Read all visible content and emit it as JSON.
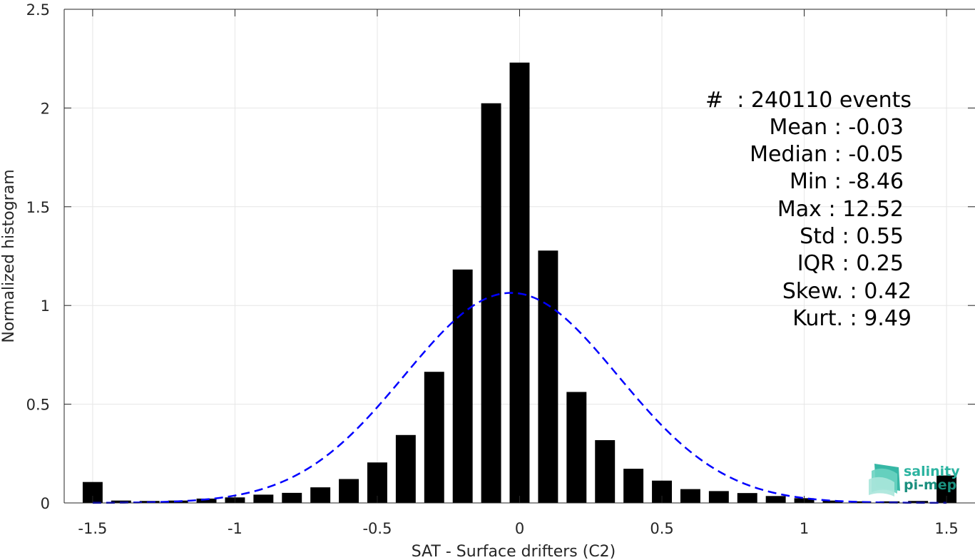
{
  "chart_data": {
    "type": "bar",
    "xlabel": "SAT - Surface drifters (C2)",
    "ylabel": "Normalized histogram",
    "xlim": [
      -1.6,
      1.6
    ],
    "ylim": [
      0,
      2.5
    ],
    "xticks": [
      "-1.5",
      "-1",
      "-0.5",
      "0",
      "0.5",
      "1",
      "1.5"
    ],
    "xtick_values": [
      -1.5,
      -1,
      -0.5,
      0,
      0.5,
      1,
      1.5
    ],
    "yticks": [
      "0",
      "0.5",
      "1",
      "1.5",
      "2",
      "2.5"
    ],
    "ytick_values": [
      0,
      0.5,
      1,
      1.5,
      2,
      2.5
    ],
    "grid": true,
    "bin_width": 0.1,
    "x": [
      -1.5,
      -1.4,
      -1.3,
      -1.2,
      -1.1,
      -1.0,
      -0.9,
      -0.8,
      -0.7,
      -0.6,
      -0.5,
      -0.4,
      -0.3,
      -0.2,
      -0.1,
      0.0,
      0.1,
      0.2,
      0.3,
      0.4,
      0.5,
      0.6,
      0.7,
      0.8,
      0.9,
      1.0,
      1.1,
      1.2,
      1.3,
      1.4,
      1.5
    ],
    "values": [
      0.106,
      0.012,
      0.01,
      0.012,
      0.022,
      0.028,
      0.042,
      0.051,
      0.079,
      0.121,
      0.205,
      0.344,
      0.664,
      1.182,
      2.024,
      2.23,
      1.278,
      0.562,
      0.318,
      0.173,
      0.113,
      0.07,
      0.06,
      0.05,
      0.035,
      0.024,
      0.012,
      0.008,
      0.008,
      0.01,
      0.139
    ],
    "fit_curve": {
      "style": "dashed",
      "color": "#0000ff",
      "mean": -0.03,
      "std": 0.375
    },
    "bar_color": "#000000"
  },
  "stats": [
    "#  : 240110 events",
    "Mean : -0.03",
    "Median : -0.05",
    "Min : -8.46",
    "Max : 12.52",
    "Std : 0.55",
    "IQR : 0.25",
    "Skew. : 0.42",
    "Kurt. : 9.49"
  ],
  "logo": {
    "line1": "salinity",
    "line2": "pi-mep"
  }
}
